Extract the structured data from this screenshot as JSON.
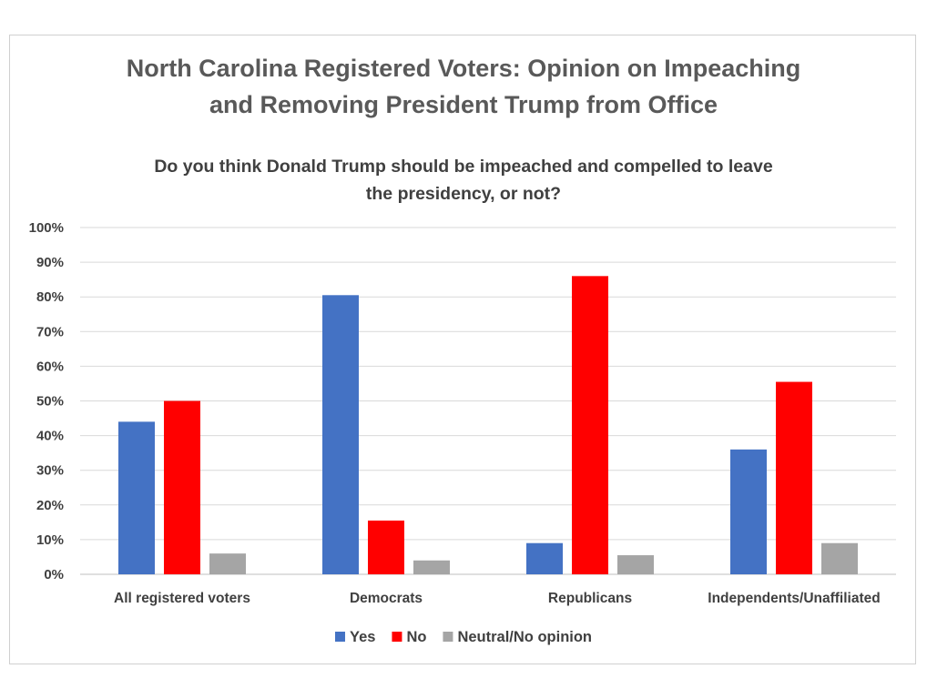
{
  "chart_data": {
    "type": "bar",
    "title_lines": [
      "North Carolina Registered Voters: Opinion on Impeaching",
      "and Removing President Trump from Office"
    ],
    "subtitle_lines": [
      "Do you think Donald Trump should be impeached and compelled to leave",
      "the presidency, or not?"
    ],
    "categories": [
      "All registered voters",
      "Democrats",
      "Republicans",
      "Independents/Unaffiliated"
    ],
    "series": [
      {
        "name": "Yes",
        "color": "#4472C4",
        "values": [
          44,
          80.5,
          9,
          36
        ]
      },
      {
        "name": "No",
        "color": "#FF0000",
        "values": [
          50,
          15.5,
          86,
          55.5
        ]
      },
      {
        "name": "Neutral/No opinion",
        "color": "#A5A5A5",
        "values": [
          6,
          4,
          5.5,
          9
        ]
      }
    ],
    "ylim": [
      0,
      100
    ],
    "yticks": [
      "0%",
      "10%",
      "20%",
      "30%",
      "40%",
      "50%",
      "60%",
      "70%",
      "80%",
      "90%",
      "100%"
    ],
    "y_unit": "%",
    "grid": true,
    "legend_position": "bottom"
  }
}
